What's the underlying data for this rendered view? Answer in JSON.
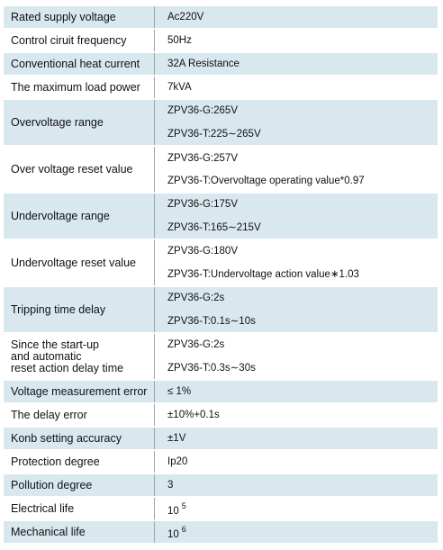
{
  "rows": [
    {
      "label": "Rated supply voltage",
      "values": [
        "Ac220V"
      ],
      "shaded": true,
      "h": 26
    },
    {
      "label": "Control ciruit frequency",
      "values": [
        "50Hz"
      ],
      "shaded": false,
      "h": 26
    },
    {
      "label": "Conventional heat current",
      "values": [
        "32A Resistance"
      ],
      "shaded": true,
      "h": 26
    },
    {
      "label": "The maximum load power",
      "values": [
        "7kVA"
      ],
      "shaded": false,
      "h": 26
    },
    {
      "label": "Overvoltage range",
      "values": [
        "ZPV36-G:265V",
        "ZPV36-T:225∼265V"
      ],
      "shaded": true,
      "h": 52
    },
    {
      "label": "Over voltage reset value",
      "values": [
        "ZPV36-G:257V",
        "ZPV36-T:Overvoltage operating value*0.97"
      ],
      "shaded": false,
      "h": 52
    },
    {
      "label": "Undervoltage range",
      "values": [
        "ZPV36-G:175V",
        "ZPV36-T:165∼215V"
      ],
      "shaded": true,
      "h": 52
    },
    {
      "label": "Undervoltage reset value",
      "values": [
        "ZPV36-G:180V",
        "ZPV36-T:Undervoltage action value∗1.03"
      ],
      "shaded": false,
      "h": 52
    },
    {
      "label": "Tripping time delay",
      "values": [
        "ZPV36-G:2s",
        "ZPV36-T:0.1s∼10s"
      ],
      "shaded": true,
      "h": 52
    },
    {
      "label": "Since the start-up\n and automatic\nreset action delay time",
      "values": [
        "ZPV36-G:2s",
        "ZPV36-T:0.3s∼30s"
      ],
      "shaded": false,
      "h": 52
    },
    {
      "label": "Voltage measurement error",
      "values": [
        "≤ 1%"
      ],
      "shaded": true,
      "h": 26
    },
    {
      "label": "The delay error",
      "values": [
        "±10%+0.1s"
      ],
      "shaded": false,
      "h": 26
    },
    {
      "label": "Konb setting accuracy",
      "values": [
        "±1V"
      ],
      "shaded": true,
      "h": 26
    },
    {
      "label": "Protection degree",
      "values": [
        "Ip20"
      ],
      "shaded": false,
      "h": 26
    },
    {
      "label": "Pollution degree",
      "values": [
        "3"
      ],
      "shaded": true,
      "h": 26
    },
    {
      "label": "Electrical life",
      "values": [
        "10"
      ],
      "sup": "5",
      "shaded": false,
      "h": 26
    },
    {
      "label": "Mechanical life",
      "values": [
        "10"
      ],
      "sup": "6",
      "shaded": true,
      "h": 26
    }
  ]
}
